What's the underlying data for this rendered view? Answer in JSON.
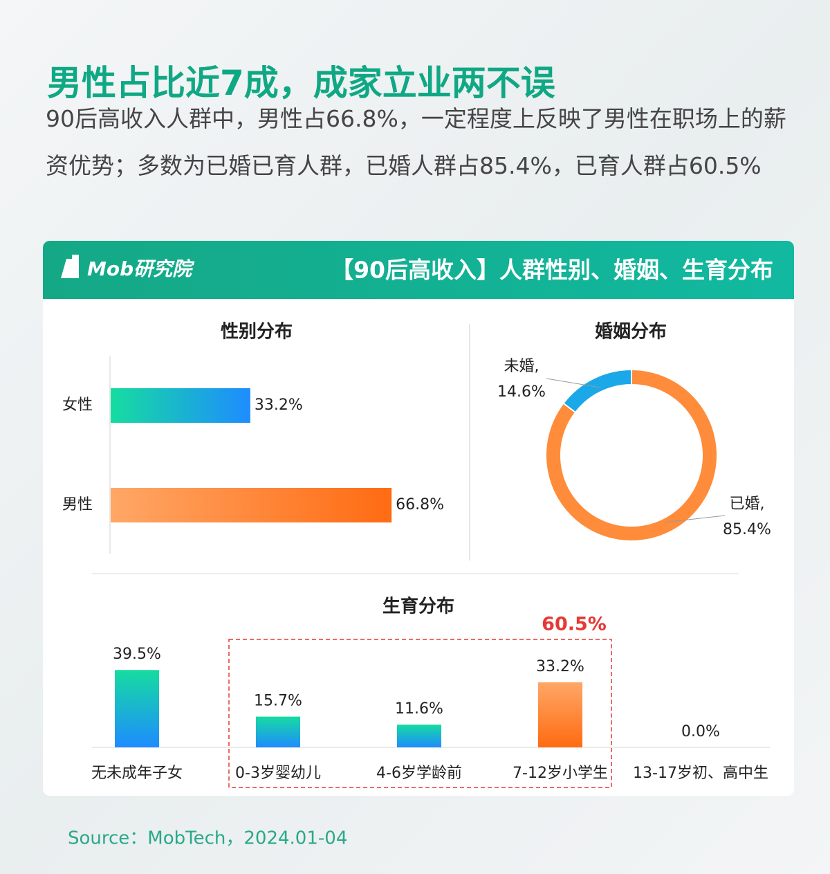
{
  "title": "男性占比近7成，成家立业两不误",
  "description": "90后高收入人群中，男性占66.8%，一定程度上反映了男性在职场上的薪资优势；多数为已婚已育人群，已婚人群占85.4%，已育人群占60.5%",
  "logo": "Mob研究院",
  "panel_title": "【90后高收入】人群性别、婚姻、生育分布",
  "source": "Source：MobTech，2024.01-04",
  "chart_data": [
    {
      "type": "hbar",
      "title": "性别分布",
      "categories": [
        "女性",
        "男性"
      ],
      "values": [
        33.2,
        66.8
      ],
      "value_labels": [
        "33.2%",
        "66.8%"
      ],
      "colors": [
        [
          "#16dca0",
          "#1e8cff"
        ],
        [
          "#ffa766",
          "#ff6b12"
        ]
      ]
    },
    {
      "type": "donut",
      "title": "婚姻分布",
      "categories": [
        "未婚,",
        "已婚,"
      ],
      "values": [
        14.6,
        85.4
      ],
      "value_labels": [
        "14.6%",
        "85.4%"
      ],
      "colors": [
        "#1aa8e8",
        "#ff8c3a"
      ]
    },
    {
      "type": "bar",
      "title": "生育分布",
      "categories": [
        "无未成年子女",
        "0-3岁婴幼儿",
        "4-6岁学龄前",
        "7-12岁小学生",
        "13-17岁初、高中生"
      ],
      "values": [
        39.5,
        15.7,
        11.6,
        33.2,
        0.0
      ],
      "value_labels": [
        "39.5%",
        "15.7%",
        "11.6%",
        "33.2%",
        "0.0%"
      ],
      "colors": [
        [
          "#16dca0",
          "#1e8cff"
        ],
        [
          "#16dca0",
          "#1e8cff"
        ],
        [
          "#16dca0",
          "#1e8cff"
        ],
        [
          "#ffa766",
          "#ff6b12"
        ],
        [
          "#16dca0",
          "#1e8cff"
        ]
      ],
      "annotation": "60.5%"
    }
  ]
}
